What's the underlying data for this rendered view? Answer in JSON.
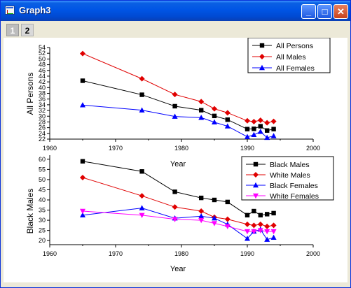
{
  "window": {
    "title": "Graph3",
    "controls": {
      "minimize": "_",
      "maximize": "□",
      "close": "✕"
    }
  },
  "layer_tabs": [
    "1",
    "2"
  ],
  "chart_data": [
    {
      "type": "line",
      "ylabel": "All Persons",
      "xlabel": "Year",
      "xlim": [
        1960,
        2000
      ],
      "ylim": [
        22,
        54
      ],
      "xticks": [
        1960,
        1970,
        1980,
        1990,
        2000
      ],
      "yticks": [
        22,
        24,
        26,
        28,
        30,
        32,
        34,
        36,
        38,
        40,
        42,
        44,
        46,
        48,
        50,
        52,
        54
      ],
      "x": [
        1965,
        1974,
        1979,
        1983,
        1985,
        1987,
        1990,
        1991,
        1992,
        1993,
        1994
      ],
      "series": [
        {
          "name": "All Persons",
          "color": "#000000",
          "marker": "square",
          "values": [
            42.4,
            37.5,
            33.5,
            32.1,
            30.1,
            28.8,
            25.5,
            25.6,
            26.5,
            25.0,
            25.5
          ]
        },
        {
          "name": "All Males",
          "color": "#e00000",
          "marker": "diamond",
          "values": [
            51.9,
            43.1,
            37.6,
            35.1,
            32.6,
            31.2,
            28.4,
            28.1,
            28.6,
            27.7,
            28.2
          ]
        },
        {
          "name": "All Females",
          "color": "#0000ff",
          "marker": "triangle-up",
          "values": [
            33.9,
            32.1,
            29.9,
            29.5,
            27.9,
            26.5,
            22.8,
            23.5,
            24.6,
            22.5,
            23.1
          ]
        }
      ],
      "legend": "top-right"
    },
    {
      "type": "line",
      "ylabel": "Black Males",
      "xlabel": "Year",
      "xlim": [
        1960,
        2000
      ],
      "ylim": [
        18,
        62
      ],
      "xticks": [
        1960,
        1970,
        1980,
        1990,
        2000
      ],
      "yticks": [
        20,
        25,
        30,
        35,
        40,
        45,
        50,
        55,
        60
      ],
      "x": [
        1965,
        1974,
        1979,
        1983,
        1985,
        1987,
        1990,
        1991,
        1992,
        1993,
        1994
      ],
      "series": [
        {
          "name": "Black Males",
          "color": "#000000",
          "marker": "square",
          "values": [
            59,
            54,
            44,
            41,
            40,
            39,
            32.5,
            34.5,
            32.5,
            33,
            33.5
          ]
        },
        {
          "name": "White Males",
          "color": "#e00000",
          "marker": "diamond",
          "values": [
            51,
            42,
            36.5,
            34.5,
            31.5,
            30.5,
            28,
            27.5,
            28,
            27,
            27.5
          ]
        },
        {
          "name": "Black Females",
          "color": "#0000ff",
          "marker": "triangle-up",
          "values": [
            32.5,
            36,
            31,
            32,
            31,
            28,
            21,
            24.5,
            25.5,
            20.5,
            21.5
          ]
        },
        {
          "name": "White Females",
          "color": "#ff00ff",
          "marker": "triangle-down",
          "values": [
            34.5,
            32.5,
            30.5,
            30,
            28.5,
            27,
            24.5,
            24.5,
            25,
            24.5,
            24.5
          ]
        }
      ],
      "legend": "top-right"
    }
  ]
}
